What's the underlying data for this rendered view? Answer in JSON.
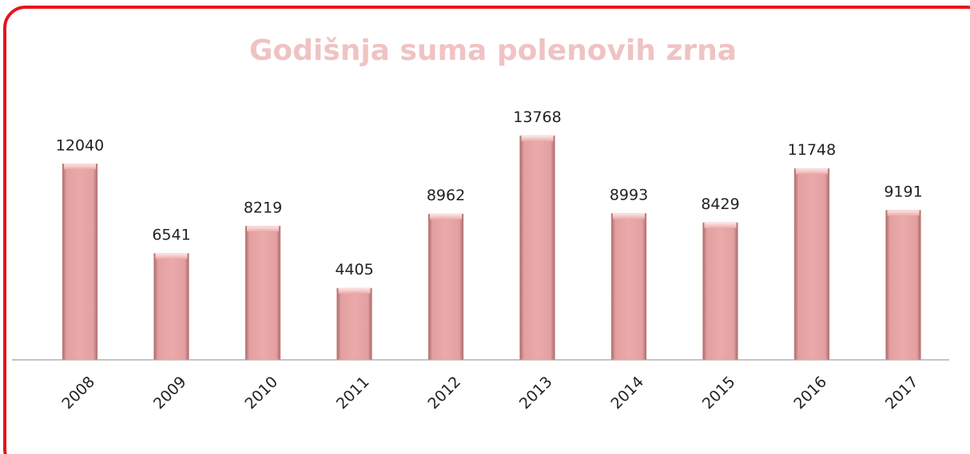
{
  "chart_data": {
    "type": "bar",
    "title": "Godišnja suma polenovih zrna",
    "categories": [
      "2008",
      "2009",
      "2010",
      "2011",
      "2012",
      "2013",
      "2014",
      "2015",
      "2016",
      "2017"
    ],
    "values": [
      12040,
      6541,
      8219,
      4405,
      8962,
      13768,
      8993,
      8429,
      11748,
      9191
    ],
    "color": "#e8a3a3"
  }
}
